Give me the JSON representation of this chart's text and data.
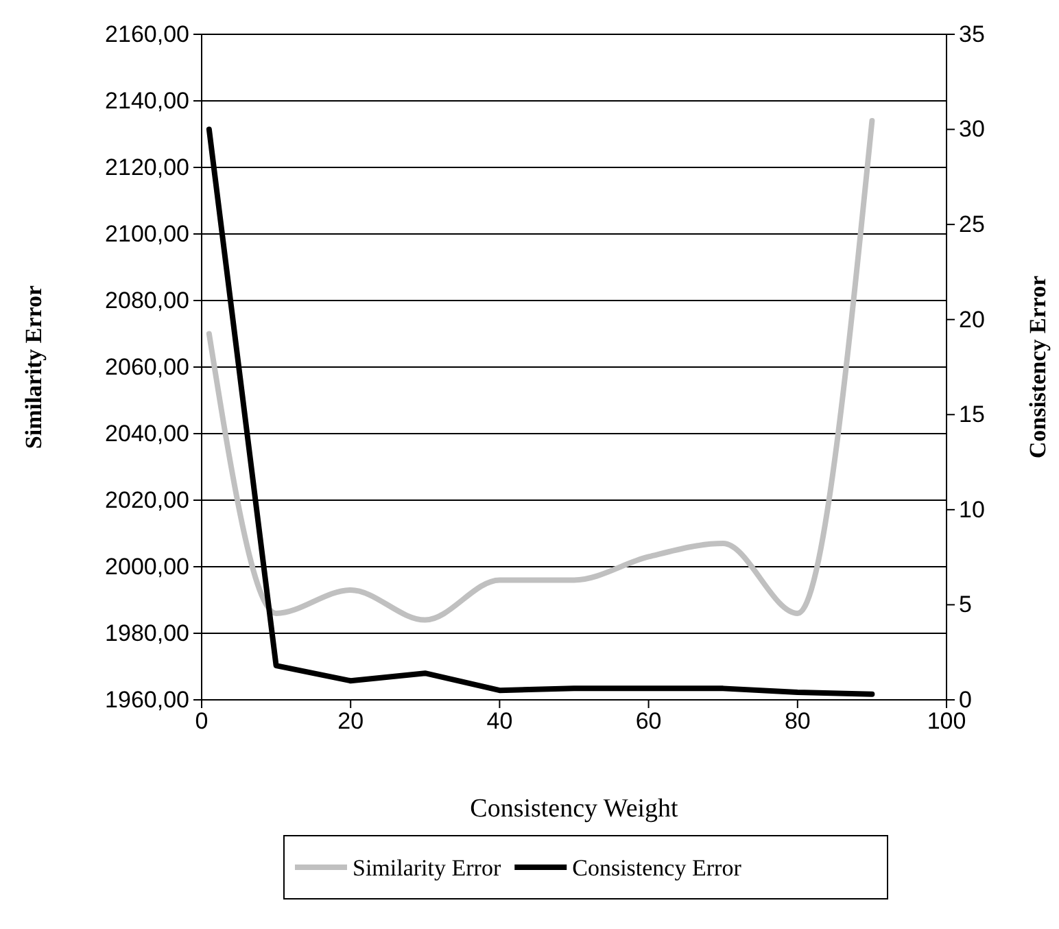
{
  "chart_data": {
    "type": "line",
    "xlabel": "Consistency Weight",
    "ylabel": "Similarity Error",
    "y2label": "Consistency Error",
    "x": [
      1,
      10,
      20,
      30,
      40,
      50,
      60,
      70,
      80,
      90
    ],
    "series": [
      {
        "name": "Similarity Error",
        "color": "#c0c0c0",
        "values": [
          2070,
          1986,
          1993,
          1984,
          1996,
          1996,
          2003,
          2007,
          1986,
          2134
        ]
      },
      {
        "name": "Consistency Error",
        "color": "#000000",
        "axis": "y2",
        "values": [
          30,
          1.8,
          1.0,
          1.4,
          0.5,
          0.6,
          0.6,
          0.6,
          0.4,
          0.3
        ]
      }
    ],
    "xlim": [
      0,
      100
    ],
    "xticks": [
      0,
      20,
      40,
      60,
      80,
      100
    ],
    "ylim": [
      1960,
      2160
    ],
    "yticks": [
      {
        "value": 1960,
        "label": "1960,00"
      },
      {
        "value": 1980,
        "label": "1980,00"
      },
      {
        "value": 2000,
        "label": "2000,00"
      },
      {
        "value": 2020,
        "label": "2020,00"
      },
      {
        "value": 2040,
        "label": "2040,00"
      },
      {
        "value": 2060,
        "label": "2060,00"
      },
      {
        "value": 2080,
        "label": "2080,00"
      },
      {
        "value": 2100,
        "label": "2100,00"
      },
      {
        "value": 2120,
        "label": "2120,00"
      },
      {
        "value": 2140,
        "label": "2140,00"
      },
      {
        "value": 2160,
        "label": "2160,00"
      }
    ],
    "y2lim": [
      0,
      35
    ],
    "y2ticks": [
      0,
      5,
      10,
      15,
      20,
      25,
      30,
      35
    ],
    "grid": "y",
    "legend": "bottom",
    "marker": "none",
    "line_style": "solid"
  }
}
